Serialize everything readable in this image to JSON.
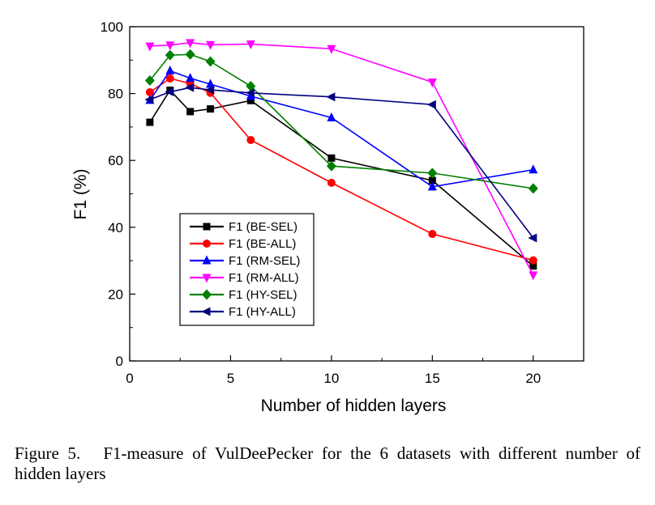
{
  "chart_data": {
    "type": "line",
    "xlabel": "Number of hidden layers",
    "ylabel": "F1 (%)",
    "xlim": [
      0,
      22.5
    ],
    "ylim": [
      0,
      100
    ],
    "xticks": [
      0,
      5,
      10,
      15,
      20
    ],
    "yticks": [
      0,
      20,
      40,
      60,
      80,
      100
    ],
    "grid": false,
    "legend_position": "bottom-left",
    "x": [
      1,
      2,
      3,
      4,
      6,
      10,
      15,
      20
    ],
    "series": [
      {
        "name": "F1 (BE-SEL)",
        "color": "#000000",
        "marker": "square",
        "values": [
          71.4,
          81.0,
          74.6,
          75.4,
          77.9,
          60.7,
          54.0,
          28.4
        ]
      },
      {
        "name": "F1 (BE-ALL)",
        "color": "#ff0000",
        "marker": "circle",
        "values": [
          80.4,
          84.5,
          83.0,
          80.2,
          66.1,
          53.3,
          38.0,
          30.1
        ]
      },
      {
        "name": "F1 (RM-SEL)",
        "color": "#0000ff",
        "marker": "triangle-up",
        "values": [
          78.0,
          86.8,
          84.6,
          82.8,
          79.2,
          72.8,
          52.1,
          57.2
        ]
      },
      {
        "name": "F1 (RM-ALL)",
        "color": "#ff00ff",
        "marker": "triangle-down",
        "values": [
          94.2,
          94.5,
          95.2,
          94.6,
          94.8,
          93.4,
          83.4,
          25.7
        ]
      },
      {
        "name": "F1 (HY-SEL)",
        "color": "#008000",
        "marker": "diamond",
        "values": [
          83.9,
          91.5,
          91.7,
          89.6,
          82.2,
          58.3,
          56.2,
          51.6
        ]
      },
      {
        "name": "F1 (HY-ALL)",
        "color": "#000080",
        "marker": "triangle-left",
        "values": [
          78.2,
          80.5,
          81.8,
          81.1,
          80.2,
          79.0,
          76.7,
          36.8
        ]
      }
    ]
  },
  "caption": {
    "label": "Figure 5.",
    "text": "F1-measure of VulDeePecker for the 6 datasets with different number of hidden layers"
  }
}
